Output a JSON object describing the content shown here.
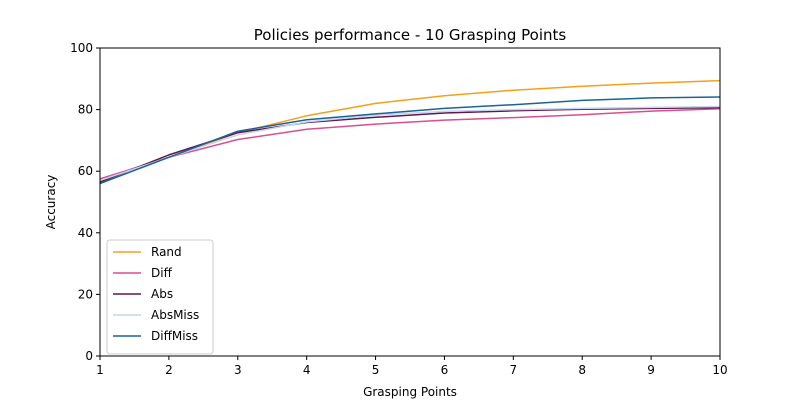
{
  "chart_data": {
    "type": "line",
    "title": "Policies performance - 10 Grasping Points",
    "xlabel": "Grasping Points",
    "ylabel": "Accuracy",
    "xlim": [
      1,
      10
    ],
    "ylim": [
      0,
      100
    ],
    "x": [
      1,
      2,
      3,
      4,
      5,
      6,
      7,
      8,
      9,
      10
    ],
    "xticks": [
      "1",
      "2",
      "3",
      "4",
      "5",
      "6",
      "7",
      "8",
      "9",
      "10"
    ],
    "yticks": [
      "0",
      "20",
      "40",
      "60",
      "80",
      "100"
    ],
    "grid": false,
    "legend_position": "lower-left",
    "series": [
      {
        "name": "Rand",
        "color": "#f5a01a",
        "values": [
          57.0,
          64.5,
          72.5,
          78.0,
          82.0,
          84.5,
          86.3,
          87.6,
          88.6,
          89.4
        ]
      },
      {
        "name": "Diff",
        "color": "#d94e8f",
        "values": [
          57.5,
          64.5,
          70.3,
          73.6,
          75.3,
          76.6,
          77.4,
          78.3,
          79.5,
          80.3
        ]
      },
      {
        "name": "Abs",
        "color": "#5c1a4a",
        "values": [
          56.5,
          65.3,
          72.5,
          75.8,
          77.5,
          78.9,
          79.6,
          80.1,
          80.4,
          80.6
        ]
      },
      {
        "name": "AbsMiss",
        "color": "#c8d4f0",
        "values": [
          57.0,
          64.5,
          71.8,
          76.0,
          78.2,
          79.4,
          80.0,
          80.4,
          80.7,
          81.0
        ]
      },
      {
        "name": "DiffMiss",
        "color": "#1a6496",
        "values": [
          56.0,
          64.5,
          73.0,
          76.7,
          78.6,
          80.4,
          81.6,
          83.0,
          83.8,
          84.1
        ]
      }
    ]
  }
}
